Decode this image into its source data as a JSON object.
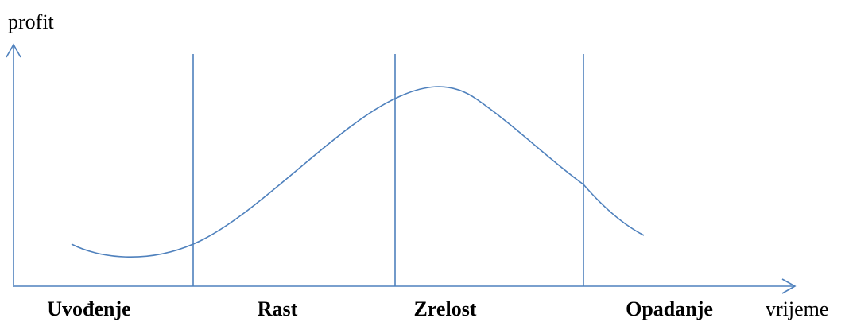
{
  "axes": {
    "y_label": "profit",
    "x_label": "vrijeme"
  },
  "stages": [
    "Uvođenje",
    "Rast",
    "Zrelost",
    "Opadanje"
  ]
}
